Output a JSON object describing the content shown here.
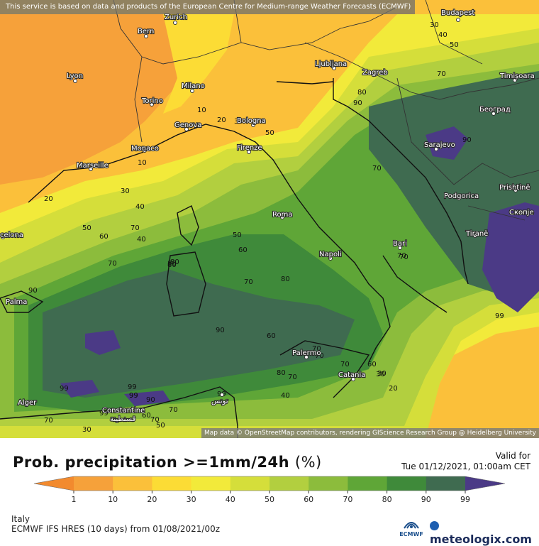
{
  "header": {
    "service_notice": "This service is based on data and products of the European Centre for Medium-range Weather Forecasts (ECMWF)"
  },
  "map": {
    "attribution": "Map data © OpenStreetMap contributors, rendering GIScience Research Group @ Heidelberg University",
    "cities": [
      "Budapest",
      "Bern",
      "Zurich",
      "Lyon",
      "Torino",
      "Milano",
      "Genova",
      "Monaco",
      "Marseille",
      "Bologna",
      "Firenze",
      "Roma",
      "Napoli",
      "Bari",
      "Palermo",
      "Catania",
      "Ljubljana",
      "Zagreb",
      "Timișoara",
      "Београд",
      "Sarajevo",
      "Podgorica",
      "Prishtinë",
      "Скопје",
      "Tiranë",
      "Palma",
      "celona",
      "Alger",
      "Constantine",
      "قسنطينة",
      "تونس"
    ],
    "contour_labels": [
      "30",
      "40",
      "50",
      "90",
      "70",
      "80",
      "70",
      "10",
      "20",
      "30",
      "50",
      "10",
      "70",
      "90",
      "70",
      "20",
      "30",
      "40",
      "70",
      "80",
      "50",
      "60",
      "70",
      "50",
      "60",
      "70",
      "80",
      "40",
      "80",
      "90",
      "90",
      "60",
      "99",
      "70",
      "99",
      "99",
      "90",
      "30",
      "70",
      "70",
      "60",
      "70",
      "80",
      "30",
      "20",
      "40",
      "70",
      "99",
      "60",
      "70",
      "50",
      "30",
      "99",
      "70",
      "99",
      "99",
      "80"
    ],
    "colors": {
      "p1": "#f6a13a",
      "p10": "#fbc03a",
      "p20": "#fcdc35",
      "p30": "#f2ea3a",
      "p40": "#d5de3a",
      "p50": "#b2cf3f",
      "p60": "#8cbc3c",
      "p70": "#5fa637",
      "p80": "#3f8a3a",
      "p90": "#3f6b50",
      "p99": "#4b3a86"
    }
  },
  "title": {
    "text": "Prob. precipitation >=1mm/24h",
    "unit": "(%)"
  },
  "valid": {
    "label": "Valid for",
    "time": "Tue 01/12/2021, 01:00am CET"
  },
  "legend": {
    "ticks": [
      "1",
      "10",
      "20",
      "30",
      "40",
      "50",
      "60",
      "70",
      "80",
      "90",
      "99"
    ],
    "colors": [
      "#f6a13a",
      "#fbc03a",
      "#fcdc35",
      "#f2ea3a",
      "#d5de3a",
      "#b2cf3f",
      "#8cbc3c",
      "#5fa637",
      "#3f8a3a",
      "#3f6b50",
      "#4b3a86"
    ],
    "left_arrow_color": "#f28a2e",
    "right_arrow_color": "#4b3a86"
  },
  "footer": {
    "region": "Italy",
    "model": "ECMWF IFS HRES (10 days) from 01/08/2021/00z",
    "ecmwf_logo_text": "ECMWF",
    "brand": "meteologix.com"
  }
}
